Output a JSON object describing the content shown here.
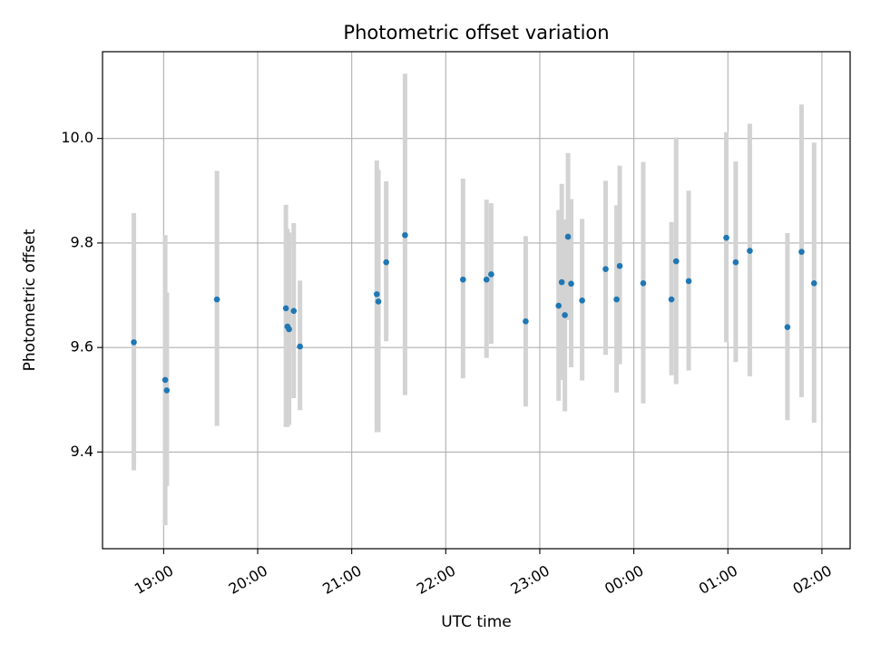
{
  "chart_data": {
    "type": "scatter",
    "title": "Photometric offset variation",
    "xlabel": "UTC time",
    "ylabel": "Photometric offset",
    "grid": true,
    "x_ticks": [
      "19:00",
      "20:00",
      "21:00",
      "22:00",
      "23:00",
      "00:00",
      "01:00",
      "02:00"
    ],
    "y_ticks": [
      "9.4",
      "9.6",
      "9.8",
      "10.0"
    ],
    "xlim": [
      "18:21",
      "02:18"
    ],
    "ylim": [
      9.215,
      10.166
    ],
    "colors": {
      "point": "#1f77b4",
      "errorbar": "#d3d3d3",
      "grid": "#b0b0b0"
    },
    "points": [
      {
        "x": "18:41",
        "y": 9.61,
        "err_low": 9.365,
        "err_high": 9.857
      },
      {
        "x": "19:01",
        "y": 9.538,
        "err_low": 9.26,
        "err_high": 9.815
      },
      {
        "x": "19:02",
        "y": 9.518,
        "err_low": 9.335,
        "err_high": 9.705
      },
      {
        "x": "19:34",
        "y": 9.692,
        "err_low": 9.45,
        "err_high": 9.938
      },
      {
        "x": "20:18",
        "y": 9.675,
        "err_low": 9.448,
        "err_high": 9.873
      },
      {
        "x": "20:19",
        "y": 9.64,
        "err_low": 9.448,
        "err_high": 9.827
      },
      {
        "x": "20:20",
        "y": 9.635,
        "err_low": 9.452,
        "err_high": 9.82
      },
      {
        "x": "20:23",
        "y": 9.67,
        "err_low": 9.503,
        "err_high": 9.838
      },
      {
        "x": "20:27",
        "y": 9.602,
        "err_low": 9.48,
        "err_high": 9.728
      },
      {
        "x": "21:16",
        "y": 9.702,
        "err_low": 9.438,
        "err_high": 9.958
      },
      {
        "x": "21:17",
        "y": 9.688,
        "err_low": 9.438,
        "err_high": 9.94
      },
      {
        "x": "21:22",
        "y": 9.763,
        "err_low": 9.612,
        "err_high": 9.918
      },
      {
        "x": "21:34",
        "y": 9.815,
        "err_low": 9.509,
        "err_high": 10.124
      },
      {
        "x": "22:11",
        "y": 9.73,
        "err_low": 9.541,
        "err_high": 9.923
      },
      {
        "x": "22:26",
        "y": 9.73,
        "err_low": 9.58,
        "err_high": 9.883
      },
      {
        "x": "22:29",
        "y": 9.74,
        "err_low": 9.607,
        "err_high": 9.876
      },
      {
        "x": "22:51",
        "y": 9.65,
        "err_low": 9.487,
        "err_high": 9.813
      },
      {
        "x": "23:12",
        "y": 9.68,
        "err_low": 9.498,
        "err_high": 9.863
      },
      {
        "x": "23:14",
        "y": 9.725,
        "err_low": 9.538,
        "err_high": 9.913
      },
      {
        "x": "23:16",
        "y": 9.662,
        "err_low": 9.478,
        "err_high": 9.845
      },
      {
        "x": "23:18",
        "y": 9.812,
        "err_low": 9.652,
        "err_high": 9.972
      },
      {
        "x": "23:20",
        "y": 9.722,
        "err_low": 9.562,
        "err_high": 9.884
      },
      {
        "x": "23:27",
        "y": 9.69,
        "err_low": 9.537,
        "err_high": 9.846
      },
      {
        "x": "23:42",
        "y": 9.75,
        "err_low": 9.586,
        "err_high": 9.919
      },
      {
        "x": "23:49",
        "y": 9.692,
        "err_low": 9.514,
        "err_high": 9.872
      },
      {
        "x": "23:51",
        "y": 9.756,
        "err_low": 9.568,
        "err_high": 9.948
      },
      {
        "x": "00:06",
        "y": 9.723,
        "err_low": 9.493,
        "err_high": 9.955
      },
      {
        "x": "00:24",
        "y": 9.692,
        "err_low": 9.547,
        "err_high": 9.84
      },
      {
        "x": "00:27",
        "y": 9.765,
        "err_low": 9.53,
        "err_high": 10.002
      },
      {
        "x": "00:35",
        "y": 9.727,
        "err_low": 9.556,
        "err_high": 9.9
      },
      {
        "x": "00:59",
        "y": 9.81,
        "err_low": 9.61,
        "err_high": 10.012
      },
      {
        "x": "01:05",
        "y": 9.763,
        "err_low": 9.572,
        "err_high": 9.956
      },
      {
        "x": "01:14",
        "y": 9.785,
        "err_low": 9.545,
        "err_high": 10.028
      },
      {
        "x": "01:38",
        "y": 9.639,
        "err_low": 9.461,
        "err_high": 9.819
      },
      {
        "x": "01:47",
        "y": 9.783,
        "err_low": 9.505,
        "err_high": 10.065
      },
      {
        "x": "01:55",
        "y": 9.723,
        "err_low": 9.456,
        "err_high": 9.992
      }
    ]
  }
}
